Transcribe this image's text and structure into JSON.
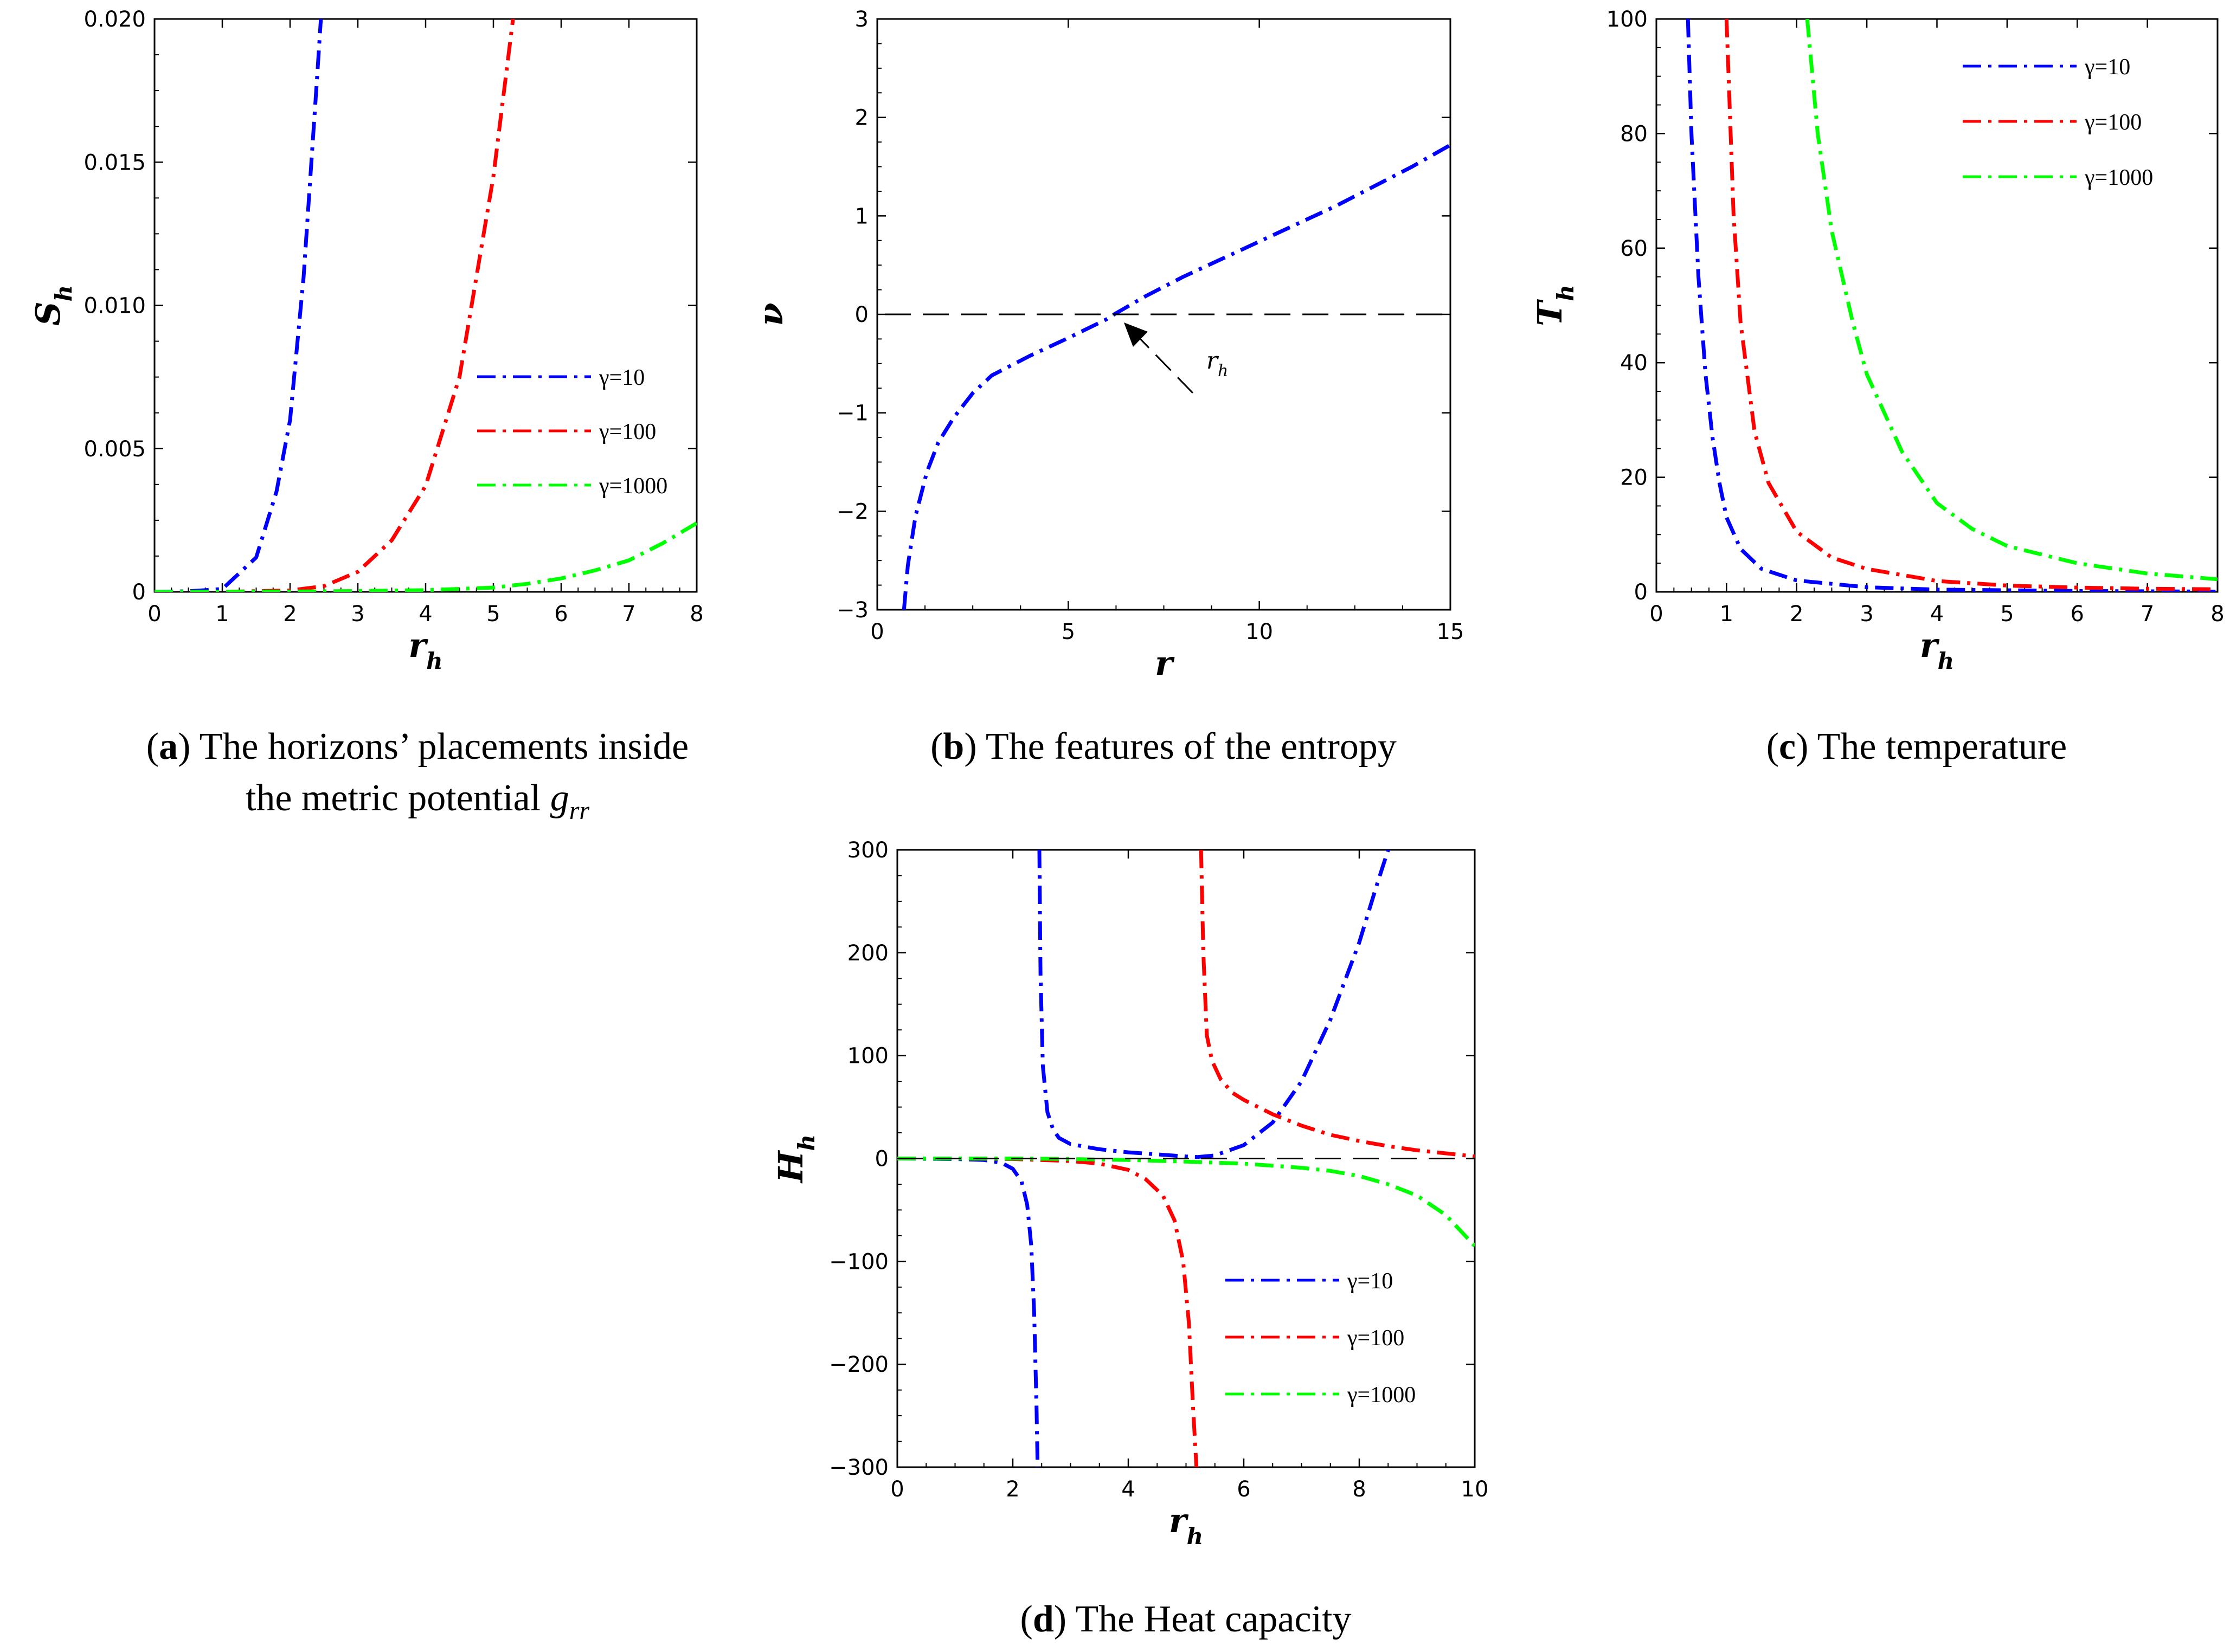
{
  "colors": {
    "blue": "#0000ff",
    "red": "#ff0000",
    "green": "#00ff00",
    "black": "#000000"
  },
  "chart_data": [
    {
      "id": "a",
      "type": "line",
      "caption": {
        "letter": "a",
        "text": "The horizons’ placements inside",
        "line2": "the metric potential ",
        "sym": "g",
        "sub": "rr"
      },
      "xlabel": "r",
      "xlabel_sub": "h",
      "ylabel": "S",
      "ylabel_sub": "h",
      "xlim": [
        0,
        8
      ],
      "ylim": [
        0,
        0.02
      ],
      "xticks": [
        0,
        1,
        2,
        3,
        4,
        5,
        6,
        7,
        8
      ],
      "xtick_labels": [
        "0",
        "1",
        "2",
        "3",
        "4",
        "5",
        "6",
        "7",
        "8"
      ],
      "yticks": [
        0,
        0.005,
        0.01,
        0.015,
        0.02
      ],
      "ytick_labels": [
        "0",
        "0.005",
        "0.010",
        "0.015",
        "0.020"
      ],
      "legend": {
        "position": "middle-right",
        "entries": [
          "γ=10",
          "γ=100",
          "γ=1000"
        ]
      },
      "series": [
        {
          "name": "γ=10",
          "color": "blue",
          "x": [
            0,
            0.5,
            1.0,
            1.5,
            1.8,
            2.0,
            2.2,
            2.4,
            2.46
          ],
          "y": [
            0,
            2e-05,
            0.0001,
            0.0012,
            0.0035,
            0.006,
            0.011,
            0.018,
            0.0202
          ]
        },
        {
          "name": "γ=100",
          "color": "red",
          "x": [
            0,
            1,
            2,
            2.5,
            3,
            3.5,
            4,
            4.5,
            5,
            5.3
          ],
          "y": [
            0,
            0,
            5e-05,
            0.0002,
            0.0007,
            0.0018,
            0.0037,
            0.0075,
            0.0145,
            0.0202
          ]
        },
        {
          "name": "γ=1000",
          "color": "green",
          "x": [
            0,
            2,
            3,
            4,
            5,
            5.5,
            6,
            6.5,
            7,
            7.5,
            8
          ],
          "y": [
            0,
            1e-05,
            3e-05,
            6e-05,
            0.00015,
            0.00028,
            0.00047,
            0.00075,
            0.0011,
            0.0017,
            0.0024
          ]
        }
      ]
    },
    {
      "id": "b",
      "type": "line",
      "caption": {
        "letter": "b",
        "text": "The features of the entropy"
      },
      "xlabel": "r",
      "ylabel": "ν",
      "xlim": [
        0,
        15
      ],
      "ylim": [
        -3,
        3
      ],
      "xticks": [
        0,
        5,
        10,
        15
      ],
      "xtick_labels": [
        "0",
        "5",
        "10",
        "15"
      ],
      "yticks": [
        -3,
        -2,
        -1,
        0,
        1,
        2,
        3
      ],
      "ytick_labels": [
        "-3",
        "-2",
        "-1",
        "0",
        "1",
        "2",
        "3"
      ],
      "annotation": {
        "text": "r",
        "sub": "h",
        "x": 6.2,
        "y": 0
      },
      "series": [
        {
          "name": "ν(r)",
          "color": "blue",
          "x": [
            0.7,
            0.8,
            1.0,
            1.3,
            1.6,
            2.0,
            2.5,
            3.0,
            4.0,
            5.0,
            6.0,
            6.2,
            7.0,
            8.0,
            9.0,
            10.0,
            11.0,
            12.0,
            13.0,
            14.0,
            15.0
          ],
          "y": [
            -3.0,
            -2.55,
            -2.05,
            -1.6,
            -1.3,
            -1.05,
            -0.8,
            -0.62,
            -0.42,
            -0.24,
            -0.05,
            0.0,
            0.18,
            0.38,
            0.56,
            0.74,
            0.92,
            1.1,
            1.3,
            1.5,
            1.72
          ]
        },
        {
          "name": "zero",
          "color": "black",
          "style": "dashed",
          "x": [
            0.2,
            15
          ],
          "y": [
            0,
            0
          ]
        }
      ]
    },
    {
      "id": "c",
      "type": "line",
      "caption": {
        "letter": "c",
        "text": "The temperature"
      },
      "xlabel": "r",
      "xlabel_sub": "h",
      "ylabel": "T",
      "ylabel_sub": "h",
      "xlim": [
        0,
        8
      ],
      "ylim": [
        0,
        100
      ],
      "xticks": [
        0,
        1,
        2,
        3,
        4,
        5,
        6,
        7,
        8
      ],
      "xtick_labels": [
        "0",
        "1",
        "2",
        "3",
        "4",
        "5",
        "6",
        "7",
        "8"
      ],
      "yticks": [
        0,
        20,
        40,
        60,
        80,
        100
      ],
      "ytick_labels": [
        "0",
        "20",
        "40",
        "60",
        "80",
        "100"
      ],
      "legend": {
        "position": "top-right",
        "entries": [
          "γ=10",
          "γ=100",
          "γ=1000"
        ]
      },
      "series": [
        {
          "name": "γ=10",
          "color": "blue",
          "x": [
            0.45,
            0.5,
            0.6,
            0.7,
            0.8,
            0.9,
            1.0,
            1.2,
            1.5,
            2.0,
            3.0,
            4.0,
            6.0,
            8.0
          ],
          "y": [
            100,
            80,
            55,
            38,
            27,
            19,
            13,
            7.5,
            4,
            2,
            0.8,
            0.4,
            0.15,
            0.05
          ]
        },
        {
          "name": "γ=100",
          "color": "red",
          "x": [
            1.0,
            1.1,
            1.2,
            1.4,
            1.6,
            2.0,
            2.5,
            3.0,
            4.0,
            5.0,
            6.0,
            7.0,
            8.0
          ],
          "y": [
            100,
            66,
            47,
            28,
            19,
            10.5,
            6,
            4,
            1.9,
            1.1,
            0.75,
            0.55,
            0.45
          ]
        },
        {
          "name": "γ=1000",
          "color": "green",
          "x": [
            2.15,
            2.3,
            2.5,
            2.8,
            3.0,
            3.5,
            4.0,
            4.5,
            5.0,
            6.0,
            7.0,
            8.0
          ],
          "y": [
            100,
            80,
            63,
            47,
            38,
            24.5,
            15.5,
            11,
            8,
            5,
            3.2,
            2.2
          ]
        }
      ]
    },
    {
      "id": "d",
      "type": "line",
      "caption": {
        "letter": "d",
        "text": "The Heat capacity"
      },
      "xlabel": "r",
      "xlabel_sub": "h",
      "ylabel": "H",
      "ylabel_sub": "h",
      "xlim": [
        0,
        10
      ],
      "ylim": [
        -300,
        300
      ],
      "xticks": [
        0,
        2,
        4,
        6,
        8,
        10
      ],
      "xtick_labels": [
        "0",
        "2",
        "4",
        "6",
        "8",
        "10"
      ],
      "yticks": [
        -300,
        -200,
        -100,
        0,
        100,
        200,
        300
      ],
      "ytick_labels": [
        "-300",
        "-200",
        "-100",
        "0",
        "100",
        "200",
        "300"
      ],
      "legend": {
        "position": "bottom-center",
        "entries": [
          "γ=10",
          "γ=100",
          "γ=1000"
        ]
      },
      "series": [
        {
          "name": "γ=10",
          "color": "blue",
          "segments": [
            {
              "x": [
                0,
                1,
                1.5,
                1.8,
                2.0,
                2.15,
                2.25,
                2.32,
                2.37,
                2.41,
                2.43
              ],
              "y": [
                0,
                -0.5,
                -1.5,
                -4,
                -10,
                -22,
                -45,
                -85,
                -150,
                -240,
                -300
              ]
            },
            {
              "x": [
                2.46,
                2.48,
                2.52,
                2.6,
                2.7,
                2.8,
                3.0,
                3.5,
                4.0,
                4.5,
                5.0,
                5.2,
                5.5,
                6.0,
                6.5,
                7.0,
                7.5,
                8.0,
                8.3,
                8.5
              ],
              "y": [
                300,
                180,
                90,
                45,
                28,
                20,
                14,
                9,
                6,
                4,
                2,
                1.5,
                3,
                13,
                35,
                75,
                135,
                210,
                265,
                300
              ]
            }
          ]
        },
        {
          "name": "γ=100",
          "color": "red",
          "segments": [
            {
              "x": [
                0,
                1,
                2,
                3,
                3.5,
                4.0,
                4.3,
                4.6,
                4.8,
                4.95,
                5.05,
                5.12,
                5.18
              ],
              "y": [
                0,
                0,
                -0.5,
                -2.5,
                -5,
                -11,
                -20,
                -36,
                -60,
                -100,
                -160,
                -240,
                -300
              ]
            },
            {
              "x": [
                5.26,
                5.3,
                5.36,
                5.45,
                5.6,
                5.8,
                6.0,
                6.5,
                7.0,
                7.5,
                8.0,
                8.5,
                9.0,
                9.5,
                10.0
              ],
              "y": [
                300,
                200,
                120,
                95,
                77,
                64,
                57,
                43,
                32,
                23,
                17,
                12,
                8,
                5,
                2
              ]
            }
          ]
        },
        {
          "name": "γ=1000",
          "color": "green",
          "segments": [
            {
              "x": [
                0,
                2,
                3,
                4,
                5,
                6,
                7,
                7.5,
                8.0,
                8.5,
                9.0,
                9.5,
                10.0
              ],
              "y": [
                0,
                0,
                -0.5,
                -1.5,
                -3,
                -5,
                -9,
                -12,
                -17,
                -25,
                -36,
                -55,
                -85
              ]
            }
          ]
        },
        {
          "name": "zero",
          "color": "black",
          "style": "dashed",
          "segments": [
            {
              "x": [
                0,
                10
              ],
              "y": [
                0,
                0
              ]
            }
          ]
        }
      ]
    }
  ]
}
